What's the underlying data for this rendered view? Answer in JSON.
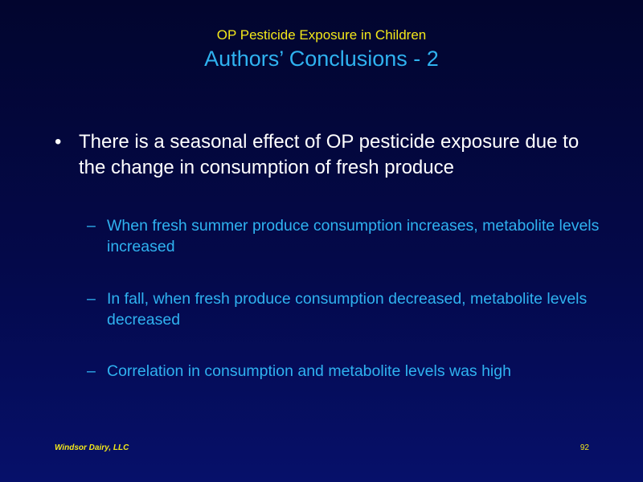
{
  "slide": {
    "kicker": "OP Pesticide Exposure in Children",
    "title": "Authors’ Conclusions - 2",
    "bullet": {
      "glyph": "•",
      "text": "There is a seasonal effect of OP pesticide exposure due to the change in consumption of fresh produce"
    },
    "sub_items": [
      {
        "glyph": "–",
        "text": "When fresh summer produce consumption increases, metabolite levels increased"
      },
      {
        "glyph": "–",
        "text": "In fall, when fresh produce consumption decreased, metabolite levels decreased"
      },
      {
        "glyph": "–",
        "text": "Correlation in consumption and metabolite levels was high"
      }
    ]
  },
  "footer": {
    "company": "Windsor Dairy, LLC",
    "page_number": "92"
  },
  "colors": {
    "kicker_and_footer": "#f3e81a",
    "title_and_subitems": "#2fb2f0",
    "bullet_text": "#ffffff",
    "background": "#04094a"
  }
}
